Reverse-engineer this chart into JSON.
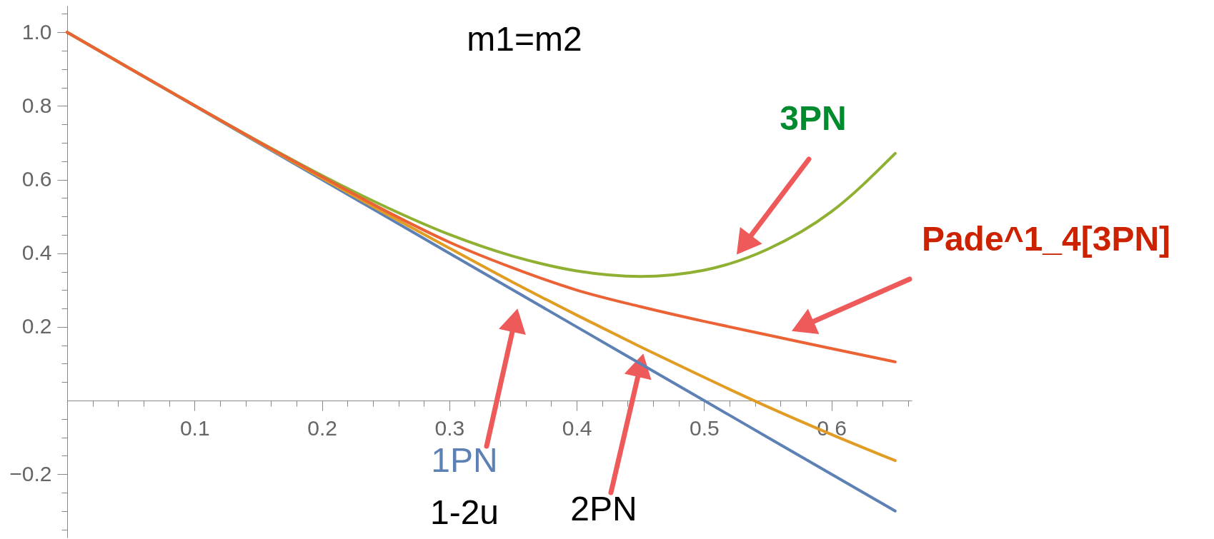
{
  "chart_data": {
    "type": "line",
    "x": [
      0,
      0.05,
      0.1,
      0.15,
      0.2,
      0.25,
      0.3,
      0.35,
      0.4,
      0.45,
      0.5,
      0.55,
      0.6,
      0.65
    ],
    "series": [
      {
        "name": "1PN",
        "color": "#5e81b5",
        "values": [
          1,
          0.9,
          0.8,
          0.7,
          0.6,
          0.5,
          0.4,
          0.3,
          0.2,
          0.1,
          0,
          -0.1,
          -0.2,
          -0.3
        ]
      },
      {
        "name": "2PN",
        "color": "#e19c24",
        "values": [
          1,
          0.9,
          0.801,
          0.702,
          0.604,
          0.508,
          0.414,
          0.321,
          0.232,
          0.146,
          0.063,
          -0.017,
          -0.092,
          -0.163
        ]
      },
      {
        "name": "3PN",
        "color": "#8fb032",
        "values": [
          1,
          0.9,
          0.801,
          0.704,
          0.611,
          0.526,
          0.451,
          0.392,
          0.352,
          0.337,
          0.354,
          0.411,
          0.513,
          0.671
        ]
      },
      {
        "name": "Pade^1_4[3PN]",
        "color": "#eb6235",
        "values": [
          1,
          0.9,
          0.801,
          0.703,
          0.608,
          0.515,
          0.43,
          0.36,
          0.3,
          0.255,
          0.215,
          0.178,
          0.141,
          0.105
        ]
      }
    ],
    "annotations": [
      "m1=m2",
      "1-2u"
    ],
    "xlim": [
      0,
      0.663
    ],
    "ylim": [
      -0.372,
      1.072
    ],
    "xticks": [
      {
        "value": 0.02,
        "label": null
      },
      {
        "value": 0.04,
        "label": null
      },
      {
        "value": 0.06,
        "label": null
      },
      {
        "value": 0.08,
        "label": null
      },
      0.1,
      {
        "value": 0.12,
        "label": null
      },
      {
        "value": 0.14,
        "label": null
      },
      {
        "value": 0.16,
        "label": null
      },
      {
        "value": 0.18,
        "label": null
      },
      0.2,
      {
        "value": 0.22,
        "label": null
      },
      {
        "value": 0.24,
        "label": null
      },
      {
        "value": 0.26,
        "label": null
      },
      {
        "value": 0.28,
        "label": null
      },
      0.3,
      {
        "value": 0.32,
        "label": null
      },
      {
        "value": 0.34,
        "label": null
      },
      {
        "value": 0.36,
        "label": null
      },
      {
        "value": 0.38,
        "label": null
      },
      0.4,
      {
        "value": 0.42,
        "label": null
      },
      {
        "value": 0.44,
        "label": null
      },
      {
        "value": 0.46,
        "label": null
      },
      {
        "value": 0.48,
        "label": null
      },
      0.5,
      {
        "value": 0.52,
        "label": null
      },
      {
        "value": 0.54,
        "label": null
      },
      {
        "value": 0.56,
        "label": null
      },
      {
        "value": 0.58,
        "label": null
      },
      0.6,
      {
        "value": 0.62,
        "label": null
      },
      {
        "value": 0.64,
        "label": null
      },
      {
        "value": 0.66,
        "label": null
      }
    ],
    "yticks": [
      {
        "value": -0.35,
        "label": null
      },
      {
        "value": -0.3,
        "label": null
      },
      {
        "value": -0.25,
        "label": null
      },
      {
        "value": -0.2,
        "label": "−0.2"
      },
      {
        "value": -0.15,
        "label": null
      },
      {
        "value": -0.1,
        "label": null
      },
      {
        "value": -0.05,
        "label": null
      },
      {
        "value": 0.05,
        "label": null
      },
      {
        "value": 0.1,
        "label": null
      },
      {
        "value": 0.15,
        "label": null
      },
      0.2,
      {
        "value": 0.25,
        "label": null
      },
      {
        "value": 0.3,
        "label": null
      },
      {
        "value": 0.35,
        "label": null
      },
      0.4,
      {
        "value": 0.45,
        "label": null
      },
      {
        "value": 0.5,
        "label": null
      },
      {
        "value": 0.55,
        "label": null
      },
      0.6,
      {
        "value": 0.65,
        "label": null
      },
      {
        "value": 0.7,
        "label": null
      },
      {
        "value": 0.75,
        "label": null
      },
      0.8,
      {
        "value": 0.85,
        "label": null
      },
      {
        "value": 0.9,
        "label": null
      },
      {
        "value": 0.95,
        "label": null
      },
      {
        "value": 1.0,
        "label": "1.0"
      },
      {
        "value": 1.05,
        "label": null
      }
    ],
    "grid": false,
    "legend": false,
    "marker": "none",
    "line_style": "solid"
  }
}
